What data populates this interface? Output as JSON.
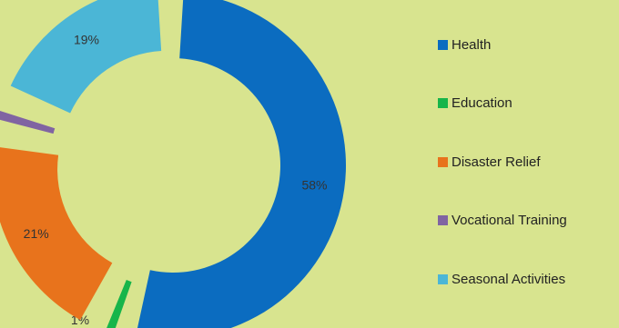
{
  "chart_data": {
    "type": "pie",
    "variant": "donut-exploded",
    "title": "",
    "categories": [
      "Health",
      "Education",
      "Disaster Relief",
      "Vocational Training",
      "Seasonal Activities"
    ],
    "values": [
      58,
      1,
      21,
      1,
      19
    ],
    "value_labels": [
      "58%",
      "1%",
      "21%",
      "1%",
      "19%"
    ],
    "colors": [
      "#0b6cc0",
      "#17b54a",
      "#e8731c",
      "#8064a2",
      "#4bb6d6"
    ],
    "legend": "right",
    "legend_entries": [
      "Health",
      "Education",
      "Disaster Relief",
      "Vocational Training",
      "Seasonal Activities"
    ]
  }
}
